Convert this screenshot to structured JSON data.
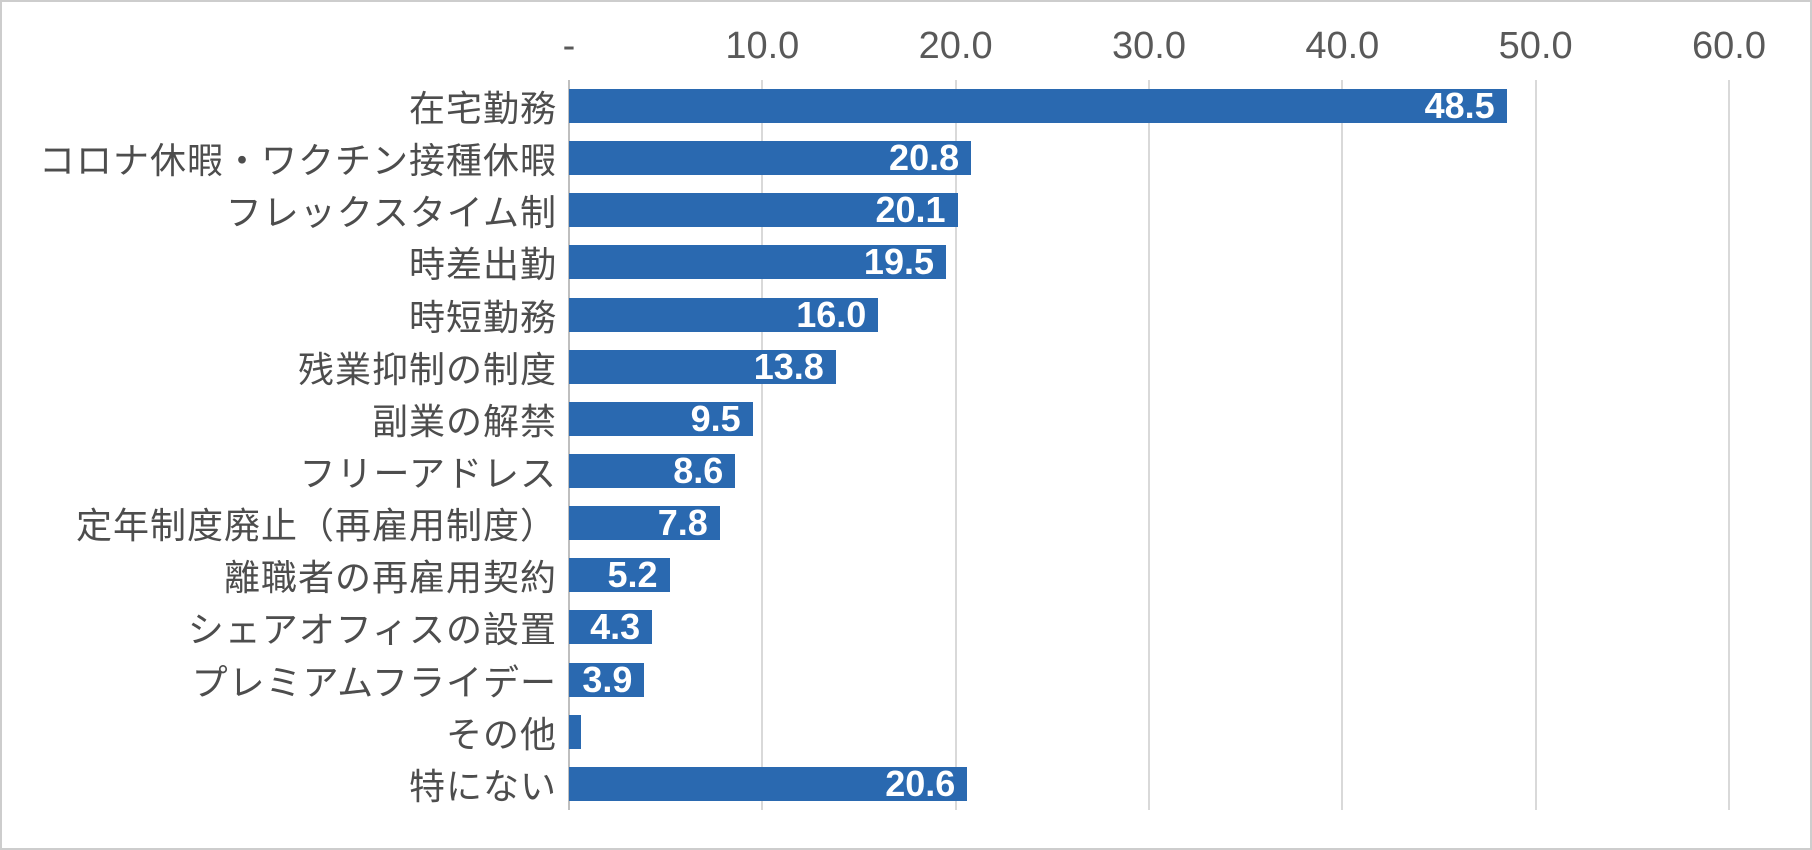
{
  "chart_data": {
    "type": "bar",
    "orientation": "horizontal",
    "title": "",
    "categories": [
      "在宅勤務",
      "コロナ休暇・ワクチン接種休暇",
      "フレックスタイム制",
      "時差出勤",
      "時短勤務",
      "残業抑制の制度",
      "副業の解禁",
      "フリーアドレス",
      "定年制度廃止（再雇用制度）",
      "離職者の再雇用契約",
      "シェアオフィスの設置",
      "プレミアムフライデー",
      "その他",
      "特にない"
    ],
    "values": [
      48.5,
      20.8,
      20.1,
      19.5,
      16.0,
      13.8,
      9.5,
      8.6,
      7.8,
      5.2,
      4.3,
      3.9,
      0.6,
      20.6
    ],
    "data_labels": [
      "48.5",
      "20.8",
      "20.1",
      "19.5",
      "16.0",
      "13.8",
      "9.5",
      "8.6",
      "7.8",
      "5.2",
      "4.3",
      "3.9",
      "",
      "20.6"
    ],
    "x_axis": {
      "position": "top",
      "min": 0,
      "max": 60,
      "tick_step": 10,
      "ticks": [
        "-",
        "10.0",
        "20.0",
        "30.0",
        "40.0",
        "50.0",
        "60.0"
      ]
    },
    "grid": true,
    "legend": false,
    "colors": {
      "bar": "#2a69b0",
      "data_label": "#ffffff",
      "tick_label": "#595959",
      "category_label": "#4d4d4d",
      "gridline": "#d9d9d9",
      "axis_line": "#bfbfbf",
      "background": "#ffffff",
      "frame_border": "#cdcdcd"
    }
  }
}
